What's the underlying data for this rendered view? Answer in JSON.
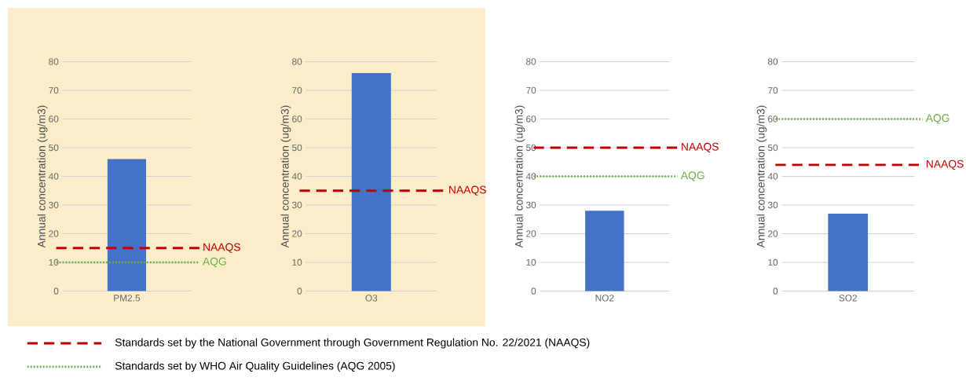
{
  "chart_data": [
    {
      "type": "bar",
      "categories": [
        "PM2.5"
      ],
      "values": [
        46
      ],
      "color": "#4472c4",
      "ylabel": "Annual concentration (ug/m3)",
      "ylim": [
        0,
        80
      ],
      "yticks": [
        0,
        10,
        20,
        30,
        40,
        50,
        60,
        70,
        80
      ],
      "grid": "y",
      "ref_lines": [
        {
          "axis": "y",
          "value": 15,
          "label": "NAAQS",
          "color": "#c00000",
          "line_style": "dashed"
        },
        {
          "axis": "y",
          "value": 10,
          "label": "AQG",
          "color": "#70ad47",
          "line_style": "dotted"
        }
      ],
      "annotations": [
        "Standards set by the National Government through Government Regulation No. 22/2021 (NAAQS)",
        "Standards set by WHO Air Quality Guidelines (AQG 2005)"
      ]
    },
    {
      "type": "bar",
      "categories": [
        "O3"
      ],
      "values": [
        76
      ],
      "color": "#4472c4",
      "ylabel": "Annual concentration (ug/m3)",
      "ylim": [
        0,
        80
      ],
      "yticks": [
        0,
        10,
        20,
        30,
        40,
        50,
        60,
        70,
        80
      ],
      "grid": "y",
      "ref_lines": [
        {
          "axis": "y",
          "value": 35,
          "label": "NAAQS",
          "color": "#c00000",
          "line_style": "dashed"
        }
      ]
    },
    {
      "type": "bar",
      "categories": [
        "NO2"
      ],
      "values": [
        28
      ],
      "color": "#4472c4",
      "ylabel": "Annual concentration (ug/m3)",
      "ylim": [
        0,
        80
      ],
      "yticks": [
        0,
        10,
        20,
        30,
        40,
        50,
        60,
        70,
        80
      ],
      "grid": "y",
      "ref_lines": [
        {
          "axis": "y",
          "value": 50,
          "label": "NAAQS",
          "color": "#c00000",
          "line_style": "dashed"
        },
        {
          "axis": "y",
          "value": 40,
          "label": "AQG",
          "color": "#70ad47",
          "line_style": "dotted"
        }
      ]
    },
    {
      "type": "bar",
      "categories": [
        "SO2"
      ],
      "values": [
        27
      ],
      "color": "#4472c4",
      "ylabel": "Annual concentration (ug/m3)",
      "ylim": [
        0,
        80
      ],
      "yticks": [
        0,
        10,
        20,
        30,
        40,
        50,
        60,
        70,
        80
      ],
      "grid": "y",
      "ref_lines": [
        {
          "axis": "y",
          "value": 60,
          "label": "AQG",
          "color": "#70ad47",
          "line_style": "dotted"
        },
        {
          "axis": "y",
          "value": 44,
          "label": "NAAQS",
          "color": "#c00000",
          "line_style": "dashed"
        }
      ]
    }
  ]
}
